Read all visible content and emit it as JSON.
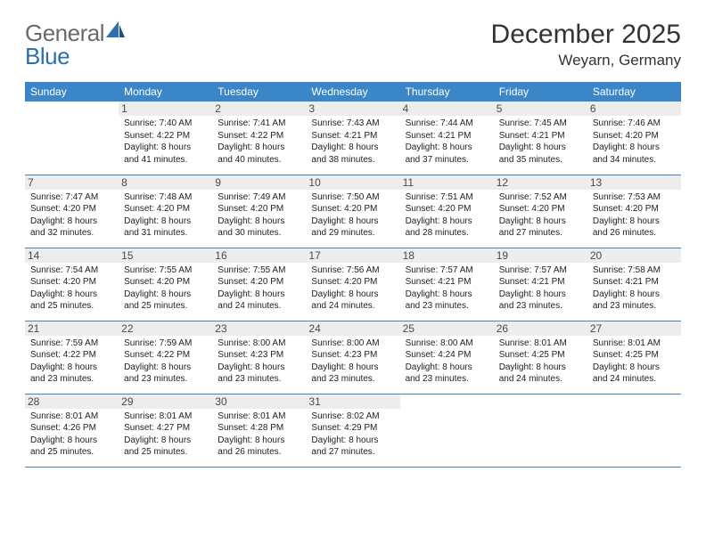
{
  "brand": {
    "part1": "General",
    "part2": "Blue"
  },
  "title": "December 2025",
  "location": "Weyarn, Germany",
  "colors": {
    "header_bg": "#3b86c6",
    "header_text": "#ffffff",
    "daynum_bg": "#ededed",
    "border": "#3b86c6",
    "logo_gray": "#6a6a6a",
    "logo_blue": "#2f6fb0"
  },
  "day_names": [
    "Sunday",
    "Monday",
    "Tuesday",
    "Wednesday",
    "Thursday",
    "Friday",
    "Saturday"
  ],
  "weeks": [
    [
      {
        "empty": true
      },
      {
        "n": "1",
        "sunrise": "Sunrise: 7:40 AM",
        "sunset": "Sunset: 4:22 PM",
        "d1": "Daylight: 8 hours",
        "d2": "and 41 minutes."
      },
      {
        "n": "2",
        "sunrise": "Sunrise: 7:41 AM",
        "sunset": "Sunset: 4:22 PM",
        "d1": "Daylight: 8 hours",
        "d2": "and 40 minutes."
      },
      {
        "n": "3",
        "sunrise": "Sunrise: 7:43 AM",
        "sunset": "Sunset: 4:21 PM",
        "d1": "Daylight: 8 hours",
        "d2": "and 38 minutes."
      },
      {
        "n": "4",
        "sunrise": "Sunrise: 7:44 AM",
        "sunset": "Sunset: 4:21 PM",
        "d1": "Daylight: 8 hours",
        "d2": "and 37 minutes."
      },
      {
        "n": "5",
        "sunrise": "Sunrise: 7:45 AM",
        "sunset": "Sunset: 4:21 PM",
        "d1": "Daylight: 8 hours",
        "d2": "and 35 minutes."
      },
      {
        "n": "6",
        "sunrise": "Sunrise: 7:46 AM",
        "sunset": "Sunset: 4:20 PM",
        "d1": "Daylight: 8 hours",
        "d2": "and 34 minutes."
      }
    ],
    [
      {
        "n": "7",
        "sunrise": "Sunrise: 7:47 AM",
        "sunset": "Sunset: 4:20 PM",
        "d1": "Daylight: 8 hours",
        "d2": "and 32 minutes."
      },
      {
        "n": "8",
        "sunrise": "Sunrise: 7:48 AM",
        "sunset": "Sunset: 4:20 PM",
        "d1": "Daylight: 8 hours",
        "d2": "and 31 minutes."
      },
      {
        "n": "9",
        "sunrise": "Sunrise: 7:49 AM",
        "sunset": "Sunset: 4:20 PM",
        "d1": "Daylight: 8 hours",
        "d2": "and 30 minutes."
      },
      {
        "n": "10",
        "sunrise": "Sunrise: 7:50 AM",
        "sunset": "Sunset: 4:20 PM",
        "d1": "Daylight: 8 hours",
        "d2": "and 29 minutes."
      },
      {
        "n": "11",
        "sunrise": "Sunrise: 7:51 AM",
        "sunset": "Sunset: 4:20 PM",
        "d1": "Daylight: 8 hours",
        "d2": "and 28 minutes."
      },
      {
        "n": "12",
        "sunrise": "Sunrise: 7:52 AM",
        "sunset": "Sunset: 4:20 PM",
        "d1": "Daylight: 8 hours",
        "d2": "and 27 minutes."
      },
      {
        "n": "13",
        "sunrise": "Sunrise: 7:53 AM",
        "sunset": "Sunset: 4:20 PM",
        "d1": "Daylight: 8 hours",
        "d2": "and 26 minutes."
      }
    ],
    [
      {
        "n": "14",
        "sunrise": "Sunrise: 7:54 AM",
        "sunset": "Sunset: 4:20 PM",
        "d1": "Daylight: 8 hours",
        "d2": "and 25 minutes."
      },
      {
        "n": "15",
        "sunrise": "Sunrise: 7:55 AM",
        "sunset": "Sunset: 4:20 PM",
        "d1": "Daylight: 8 hours",
        "d2": "and 25 minutes."
      },
      {
        "n": "16",
        "sunrise": "Sunrise: 7:55 AM",
        "sunset": "Sunset: 4:20 PM",
        "d1": "Daylight: 8 hours",
        "d2": "and 24 minutes."
      },
      {
        "n": "17",
        "sunrise": "Sunrise: 7:56 AM",
        "sunset": "Sunset: 4:20 PM",
        "d1": "Daylight: 8 hours",
        "d2": "and 24 minutes."
      },
      {
        "n": "18",
        "sunrise": "Sunrise: 7:57 AM",
        "sunset": "Sunset: 4:21 PM",
        "d1": "Daylight: 8 hours",
        "d2": "and 23 minutes."
      },
      {
        "n": "19",
        "sunrise": "Sunrise: 7:57 AM",
        "sunset": "Sunset: 4:21 PM",
        "d1": "Daylight: 8 hours",
        "d2": "and 23 minutes."
      },
      {
        "n": "20",
        "sunrise": "Sunrise: 7:58 AM",
        "sunset": "Sunset: 4:21 PM",
        "d1": "Daylight: 8 hours",
        "d2": "and 23 minutes."
      }
    ],
    [
      {
        "n": "21",
        "sunrise": "Sunrise: 7:59 AM",
        "sunset": "Sunset: 4:22 PM",
        "d1": "Daylight: 8 hours",
        "d2": "and 23 minutes."
      },
      {
        "n": "22",
        "sunrise": "Sunrise: 7:59 AM",
        "sunset": "Sunset: 4:22 PM",
        "d1": "Daylight: 8 hours",
        "d2": "and 23 minutes."
      },
      {
        "n": "23",
        "sunrise": "Sunrise: 8:00 AM",
        "sunset": "Sunset: 4:23 PM",
        "d1": "Daylight: 8 hours",
        "d2": "and 23 minutes."
      },
      {
        "n": "24",
        "sunrise": "Sunrise: 8:00 AM",
        "sunset": "Sunset: 4:23 PM",
        "d1": "Daylight: 8 hours",
        "d2": "and 23 minutes."
      },
      {
        "n": "25",
        "sunrise": "Sunrise: 8:00 AM",
        "sunset": "Sunset: 4:24 PM",
        "d1": "Daylight: 8 hours",
        "d2": "and 23 minutes."
      },
      {
        "n": "26",
        "sunrise": "Sunrise: 8:01 AM",
        "sunset": "Sunset: 4:25 PM",
        "d1": "Daylight: 8 hours",
        "d2": "and 24 minutes."
      },
      {
        "n": "27",
        "sunrise": "Sunrise: 8:01 AM",
        "sunset": "Sunset: 4:25 PM",
        "d1": "Daylight: 8 hours",
        "d2": "and 24 minutes."
      }
    ],
    [
      {
        "n": "28",
        "sunrise": "Sunrise: 8:01 AM",
        "sunset": "Sunset: 4:26 PM",
        "d1": "Daylight: 8 hours",
        "d2": "and 25 minutes."
      },
      {
        "n": "29",
        "sunrise": "Sunrise: 8:01 AM",
        "sunset": "Sunset: 4:27 PM",
        "d1": "Daylight: 8 hours",
        "d2": "and 25 minutes."
      },
      {
        "n": "30",
        "sunrise": "Sunrise: 8:01 AM",
        "sunset": "Sunset: 4:28 PM",
        "d1": "Daylight: 8 hours",
        "d2": "and 26 minutes."
      },
      {
        "n": "31",
        "sunrise": "Sunrise: 8:02 AM",
        "sunset": "Sunset: 4:29 PM",
        "d1": "Daylight: 8 hours",
        "d2": "and 27 minutes."
      },
      {
        "empty": true
      },
      {
        "empty": true
      },
      {
        "empty": true
      }
    ]
  ]
}
